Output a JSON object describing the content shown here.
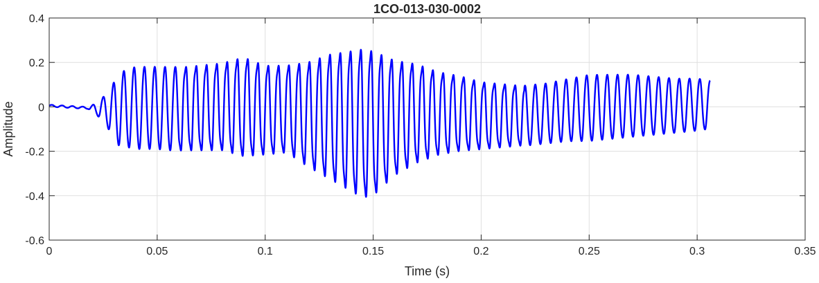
{
  "chart_data": {
    "type": "line",
    "title": "1CO-013-030-0002",
    "xlabel": "Time (s)",
    "ylabel": "Amplitude",
    "xlim": [
      0,
      0.35
    ],
    "ylim": [
      -0.6,
      0.4
    ],
    "x_ticks": [
      0,
      0.05,
      0.1,
      0.15,
      0.2,
      0.25,
      0.3,
      0.35
    ],
    "x_tick_labels": [
      "0",
      "0.05",
      "0.1",
      "0.15",
      "0.2",
      "0.25",
      "0.3",
      "0.35"
    ],
    "y_ticks": [
      -0.6,
      -0.4,
      -0.2,
      0,
      0.2,
      0.4
    ],
    "y_tick_labels": [
      "-0.6",
      "-0.4",
      "-0.2",
      "0",
      "0.2",
      "0.4"
    ],
    "grid": true,
    "series": [
      {
        "color": "#0000ff",
        "signal_end_s": 0.306,
        "envelope": {
          "t": [
            0,
            0.018,
            0.022,
            0.026,
            0.028,
            0.032,
            0.04,
            0.05,
            0.06,
            0.07,
            0.08,
            0.09,
            0.1,
            0.11,
            0.12,
            0.13,
            0.14,
            0.145,
            0.15,
            0.16,
            0.17,
            0.18,
            0.19,
            0.2,
            0.21,
            0.22,
            0.23,
            0.24,
            0.25,
            0.26,
            0.27,
            0.28,
            0.29,
            0.3,
            0.306
          ],
          "upper": [
            0.01,
            0.0,
            0.02,
            0.06,
            0.08,
            0.17,
            0.2,
            0.2,
            0.2,
            0.21,
            0.22,
            0.25,
            0.21,
            0.21,
            0.23,
            0.27,
            0.29,
            0.3,
            0.29,
            0.24,
            0.22,
            0.18,
            0.16,
            0.13,
            0.12,
            0.11,
            0.12,
            0.14,
            0.16,
            0.16,
            0.16,
            0.15,
            0.14,
            0.14,
            0.13
          ],
          "lower": [
            0.0,
            -0.01,
            -0.04,
            -0.08,
            -0.12,
            -0.19,
            -0.21,
            -0.21,
            -0.22,
            -0.22,
            -0.22,
            -0.25,
            -0.24,
            -0.23,
            -0.3,
            -0.36,
            -0.42,
            -0.45,
            -0.44,
            -0.34,
            -0.28,
            -0.24,
            -0.22,
            -0.21,
            -0.2,
            -0.19,
            -0.18,
            -0.17,
            -0.17,
            -0.16,
            -0.15,
            -0.14,
            -0.13,
            -0.12,
            -0.11
          ]
        },
        "dominant_frequency_hz": 210
      }
    ]
  }
}
